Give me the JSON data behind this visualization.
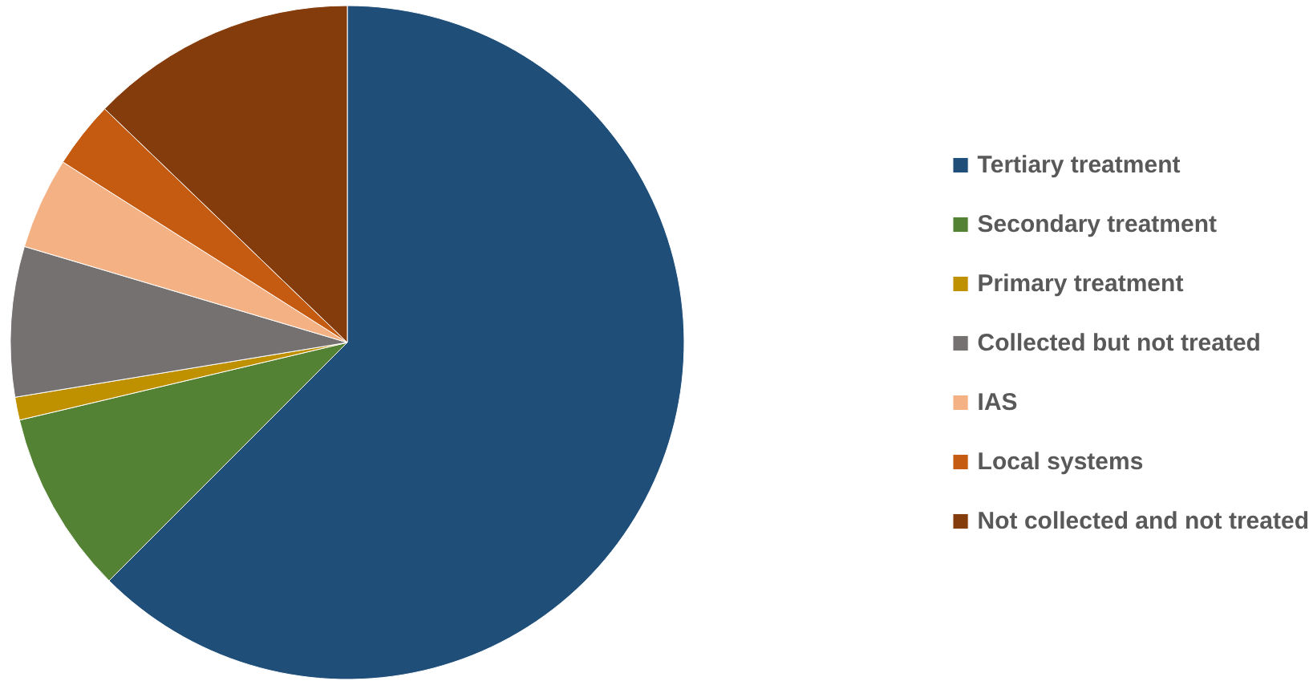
{
  "chart_data": {
    "type": "pie",
    "categories": [
      "Tertiary treatment",
      "Secondary treatment",
      "Primary treatment",
      "Collected but not treated",
      "IAS",
      "Local systems",
      "Not collected and not treated"
    ],
    "values": [
      62.5,
      8.8,
      1.1,
      7.2,
      4.4,
      3.2,
      12.8
    ],
    "colors": [
      "#1f4e79",
      "#548235",
      "#bf9000",
      "#767171",
      "#f4b183",
      "#c55a11",
      "#843c0c"
    ],
    "legend": "right"
  }
}
